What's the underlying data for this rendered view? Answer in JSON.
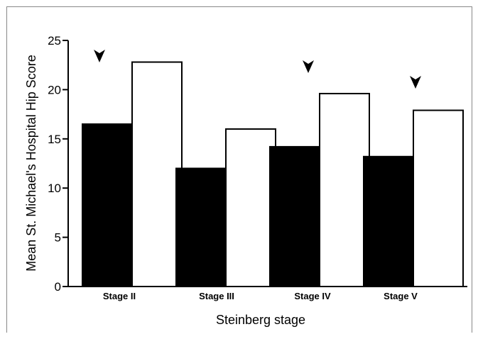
{
  "chart_data": {
    "type": "bar",
    "title": "",
    "xlabel": "Steinberg stage",
    "ylabel": "Mean St. Michael's Hospital Hip Score",
    "ylim": [
      0,
      25
    ],
    "yticks": [
      0,
      5,
      10,
      15,
      20,
      25
    ],
    "yticks_labels": [
      "0",
      "5",
      "10",
      "15",
      "20",
      "25"
    ],
    "categories": [
      "Stage II",
      "Stage III",
      "Stage IV",
      "Stage V"
    ],
    "series": [
      {
        "values": [
          16.5,
          12.0,
          14.2,
          13.2
        ],
        "color": "#000000",
        "style": "filled"
      },
      {
        "values": [
          22.8,
          16.0,
          19.6,
          17.9
        ],
        "color": "#ffffff",
        "style": "outlined"
      }
    ],
    "annotations": [
      {
        "type": "arrowhead",
        "category_index": 0,
        "near_value": 22.8
      },
      {
        "type": "arrowhead",
        "category_index": 2,
        "near_value": 19.6
      },
      {
        "type": "arrowhead",
        "category_index": 3,
        "near_value": 17.9
      }
    ],
    "grid": false,
    "legend": "none"
  }
}
